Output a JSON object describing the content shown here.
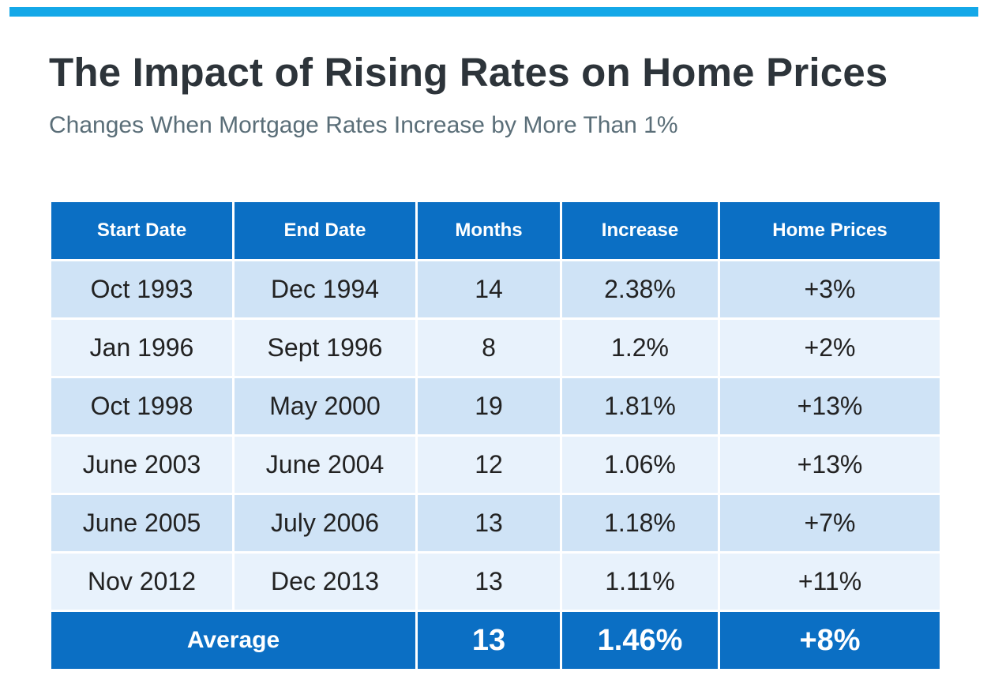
{
  "colors": {
    "accent_bar": "#14a8e8",
    "header_blue": "#0b6fc4",
    "row_dark": "#cfe3f6",
    "row_light": "#e8f2fc",
    "title": "#2d343a",
    "subtitle": "#5a6e78"
  },
  "title": "The Impact of Rising Rates on Home Prices",
  "subtitle": "Changes When Mortgage Rates Increase by More Than 1%",
  "table": {
    "headers": [
      "Start Date",
      "End Date",
      "Months",
      "Increase",
      "Home Prices"
    ],
    "rows": [
      [
        "Oct 1993",
        "Dec 1994",
        "14",
        "2.38%",
        "+3%"
      ],
      [
        "Jan 1996",
        "Sept 1996",
        "8",
        "1.2%",
        "+2%"
      ],
      [
        "Oct 1998",
        "May 2000",
        "19",
        "1.81%",
        "+13%"
      ],
      [
        "June 2003",
        "June 2004",
        "12",
        "1.06%",
        "+13%"
      ],
      [
        "June 2005",
        "July 2006",
        "13",
        "1.18%",
        "+7%"
      ],
      [
        "Nov 2012",
        "Dec 2013",
        "13",
        "1.11%",
        "+11%"
      ]
    ],
    "average": {
      "label": "Average",
      "months": "13",
      "increase": "1.46%",
      "home_prices": "+8%"
    }
  }
}
